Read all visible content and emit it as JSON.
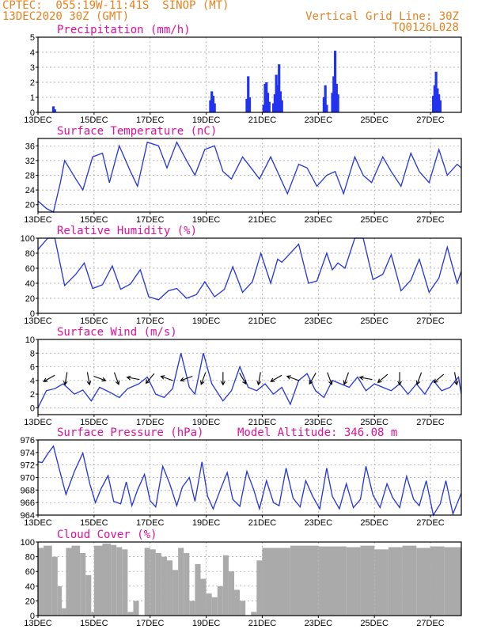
{
  "header": {
    "line1": "CPTEC:  055:19W-11:41S  SINOP (MT)",
    "line2": "13DEC2020 30Z (GMT)",
    "right1": "Vertical Grid Line: 30Z",
    "right2": "TQ0126L028"
  },
  "model_altitude_label": "Model Altitude: 346.08 m",
  "colors": {
    "title": "#e0109a",
    "header": "#e6821e",
    "series": "#2233dd",
    "cloud": "#aaaaaa"
  },
  "chart_data": [
    {
      "type": "bar",
      "title": "Precipitation (mm/h)",
      "x_tick_labels": [
        "13DEC",
        "15DEC",
        "17DEC",
        "19DEC",
        "21DEC",
        "23DEC",
        "25DEC",
        "27DEC"
      ],
      "x_days": [
        13,
        15,
        17,
        19,
        21,
        23,
        25,
        27
      ],
      "xlim": [
        13,
        28.1
      ],
      "ylim": [
        0,
        5
      ],
      "y_ticks": [
        0,
        1,
        2,
        3,
        4,
        5
      ],
      "grid": true,
      "x": [
        13.55,
        13.6,
        19.15,
        19.2,
        19.25,
        19.3,
        20.45,
        20.5,
        20.55,
        21.05,
        21.1,
        21.15,
        21.2,
        21.25,
        21.4,
        21.45,
        21.5,
        21.55,
        21.6,
        21.65,
        21.7,
        23.2,
        23.25,
        23.3,
        23.5,
        23.55,
        23.6,
        23.65,
        23.7,
        27.1,
        27.15,
        27.2,
        27.25,
        27.3,
        27.35
      ],
      "values": [
        0.4,
        0.2,
        0.8,
        1.4,
        1.1,
        0.6,
        0.9,
        2.4,
        1.0,
        0.5,
        1.9,
        2.0,
        1.3,
        0.7,
        0.6,
        1.2,
        2.5,
        1.8,
        3.2,
        1.4,
        0.8,
        1.0,
        1.8,
        0.5,
        1.3,
        2.4,
        4.1,
        1.9,
        1.2,
        1.1,
        1.8,
        2.7,
        1.6,
        1.2,
        0.8
      ]
    },
    {
      "type": "line",
      "title": "Surface Temperature (nC)",
      "x_tick_labels": [
        "13DEC",
        "15DEC",
        "17DEC",
        "19DEC",
        "21DEC",
        "23DEC",
        "25DEC",
        "27DEC"
      ],
      "x_days": [
        13,
        15,
        17,
        19,
        21,
        23,
        25,
        27
      ],
      "xlim": [
        13,
        28.1
      ],
      "ylim": [
        18,
        38
      ],
      "y_ticks": [
        20,
        24,
        28,
        32,
        36
      ],
      "grid": true,
      "x": [
        13.0,
        13.3,
        13.55,
        13.8,
        13.95,
        14.35,
        14.6,
        14.95,
        15.3,
        15.55,
        15.9,
        16.3,
        16.55,
        16.9,
        17.3,
        17.6,
        17.95,
        18.3,
        18.6,
        18.95,
        19.3,
        19.6,
        19.9,
        20.3,
        20.6,
        20.9,
        21.3,
        21.6,
        21.9,
        22.3,
        22.6,
        22.95,
        23.3,
        23.6,
        23.9,
        24.3,
        24.6,
        24.9,
        25.3,
        25.6,
        25.95,
        26.3,
        26.6,
        26.95,
        27.3,
        27.6,
        27.95,
        28.1
      ],
      "values": [
        21,
        19,
        18,
        26,
        32,
        27,
        24,
        33,
        34,
        26,
        36,
        29,
        25,
        37,
        36,
        30,
        37,
        32,
        28,
        35,
        36,
        29,
        27,
        33,
        30,
        27,
        33,
        28,
        23,
        31,
        30,
        25,
        28,
        29,
        23,
        33,
        28,
        26,
        33,
        29,
        25,
        34,
        29,
        26,
        35,
        28,
        31,
        30
      ]
    },
    {
      "type": "line",
      "title": "Relative Humidity (%)",
      "x_tick_labels": [
        "13DEC",
        "15DEC",
        "17DEC",
        "19DEC",
        "21DEC",
        "23DEC",
        "25DEC",
        "27DEC"
      ],
      "x_days": [
        13,
        15,
        17,
        19,
        21,
        23,
        25,
        27
      ],
      "xlim": [
        13,
        28.1
      ],
      "ylim": [
        0,
        100
      ],
      "y_ticks": [
        0,
        20,
        40,
        60,
        80,
        100
      ],
      "grid": true,
      "x": [
        13.0,
        13.35,
        13.6,
        13.95,
        14.35,
        14.65,
        14.95,
        15.3,
        15.65,
        15.95,
        16.3,
        16.65,
        16.95,
        17.3,
        17.65,
        17.95,
        18.3,
        18.65,
        18.95,
        19.3,
        19.65,
        19.95,
        20.3,
        20.65,
        20.95,
        21.3,
        21.55,
        21.7,
        21.95,
        22.3,
        22.65,
        22.95,
        23.3,
        23.5,
        23.7,
        23.95,
        24.3,
        24.6,
        24.95,
        25.3,
        25.6,
        25.95,
        26.3,
        26.6,
        26.95,
        27.3,
        27.6,
        27.95,
        28.1
      ],
      "values": [
        85,
        100,
        100,
        37,
        52,
        67,
        33,
        38,
        63,
        32,
        39,
        58,
        22,
        18,
        30,
        33,
        20,
        25,
        42,
        22,
        32,
        62,
        28,
        42,
        80,
        40,
        72,
        68,
        78,
        92,
        40,
        43,
        80,
        58,
        67,
        60,
        100,
        100,
        45,
        52,
        78,
        30,
        44,
        72,
        28,
        47,
        88,
        40,
        56
      ]
    },
    {
      "type": "line",
      "title": "Surface Wind (m/s)",
      "x_tick_labels": [
        "13DEC",
        "15DEC",
        "17DEC",
        "19DEC",
        "21DEC",
        "23DEC",
        "25DEC",
        "27DEC"
      ],
      "x_days": [
        13,
        15,
        17,
        19,
        21,
        23,
        25,
        27
      ],
      "xlim": [
        13,
        28.1
      ],
      "ylim": [
        -1,
        10
      ],
      "y_ticks": [
        0,
        2,
        4,
        6,
        8,
        10
      ],
      "grid": true,
      "x": [
        13.0,
        13.3,
        13.6,
        13.9,
        14.3,
        14.6,
        14.9,
        15.2,
        15.6,
        15.9,
        16.2,
        16.6,
        16.9,
        17.2,
        17.5,
        17.8,
        18.1,
        18.4,
        18.6,
        18.9,
        19.2,
        19.6,
        19.9,
        20.2,
        20.5,
        20.8,
        21.1,
        21.4,
        21.7,
        22.0,
        22.3,
        22.6,
        22.9,
        23.2,
        23.5,
        23.8,
        24.1,
        24.4,
        24.7,
        25.0,
        25.3,
        25.6,
        25.9,
        26.2,
        26.5,
        26.8,
        27.1,
        27.4,
        27.7,
        28.0,
        28.1
      ],
      "values": [
        0.0,
        2.5,
        2.8,
        3.5,
        2.0,
        2.6,
        1.0,
        3.0,
        2.2,
        1.5,
        2.8,
        3.5,
        4.5,
        2.0,
        1.5,
        2.8,
        8.0,
        3.0,
        2.0,
        8.0,
        3.5,
        1.0,
        2.5,
        6.0,
        3.0,
        2.5,
        3.5,
        2.0,
        3.0,
        0.5,
        4.0,
        5.0,
        2.5,
        1.5,
        4.0,
        3.5,
        3.0,
        4.5,
        2.5,
        3.5,
        3.0,
        2.5,
        3.5,
        2.0,
        3.5,
        2.0,
        4.0,
        2.5,
        3.0,
        4.5,
        2.0
      ],
      "wind_vectors_x": [
        13.4,
        14.0,
        14.8,
        15.2,
        15.8,
        16.4,
        17.0,
        17.6,
        18.3,
        18.9,
        19.6,
        20.3,
        20.9,
        21.5,
        22.1,
        22.8,
        23.4,
        24.0,
        24.7,
        25.3,
        25.9,
        26.6,
        27.3,
        27.9
      ],
      "wind_vectors_dir_deg": [
        150,
        100,
        80,
        20,
        70,
        190,
        130,
        200,
        160,
        110,
        90,
        60,
        100,
        150,
        200,
        120,
        70,
        110,
        190,
        140,
        90,
        110,
        140,
        80
      ]
    },
    {
      "type": "line",
      "title": "Surface Pressure (hPa)",
      "x_tick_labels": [
        "13DEC",
        "15DEC",
        "17DEC",
        "19DEC",
        "21DEC",
        "23DEC",
        "25DEC",
        "27DEC"
      ],
      "x_days": [
        13,
        15,
        17,
        19,
        21,
        23,
        25,
        27
      ],
      "xlim": [
        13,
        28.1
      ],
      "ylim": [
        964,
        976
      ],
      "y_ticks": [
        964,
        966,
        968,
        970,
        972,
        974,
        976
      ],
      "grid": true,
      "x": [
        13.0,
        13.15,
        13.35,
        13.55,
        13.75,
        14.0,
        14.3,
        14.6,
        14.85,
        15.05,
        15.25,
        15.5,
        15.7,
        15.95,
        16.15,
        16.35,
        16.55,
        16.8,
        17.0,
        17.2,
        17.45,
        17.7,
        17.95,
        18.15,
        18.4,
        18.6,
        18.85,
        19.05,
        19.25,
        19.5,
        19.75,
        19.95,
        20.2,
        20.45,
        20.7,
        20.9,
        21.15,
        21.4,
        21.6,
        21.85,
        22.1,
        22.35,
        22.55,
        22.8,
        23.05,
        23.3,
        23.5,
        23.75,
        24.0,
        24.25,
        24.5,
        24.7,
        24.95,
        25.2,
        25.45,
        25.65,
        25.9,
        26.15,
        26.4,
        26.6,
        26.85,
        27.1,
        27.35,
        27.55,
        27.8,
        28.1
      ],
      "values": [
        972.5,
        972.4,
        973.8,
        975.0,
        971.5,
        967.3,
        971.0,
        973.9,
        969.0,
        966.0,
        968.2,
        970.3,
        966.2,
        965.8,
        969.3,
        965.5,
        968.0,
        970.5,
        966.3,
        965.3,
        971.8,
        969.0,
        965.5,
        968.5,
        970.0,
        966.2,
        972.5,
        967.0,
        965.0,
        968.0,
        970.8,
        966.5,
        965.4,
        971.0,
        968.0,
        965.0,
        969.5,
        966.0,
        965.5,
        971.5,
        966.7,
        965.3,
        969.5,
        967.0,
        965.0,
        971.5,
        967.0,
        965.0,
        969.0,
        965.2,
        966.5,
        971.8,
        967.2,
        965.2,
        969.0,
        966.8,
        965.2,
        970.2,
        966.5,
        965.5,
        969.5,
        964.0,
        965.8,
        969.5,
        964.2,
        967.5
      ]
    },
    {
      "type": "area",
      "title": "Cloud Cover (%)",
      "x_tick_labels": [
        "13DEC",
        "15DEC",
        "17DEC",
        "19DEC",
        "21DEC",
        "23DEC",
        "25DEC",
        "27DEC"
      ],
      "x_days": [
        13,
        15,
        17,
        19,
        21,
        23,
        25,
        27
      ],
      "xlim": [
        13,
        28.1
      ],
      "ylim": [
        0,
        100
      ],
      "y_ticks": [
        0,
        20,
        40,
        60,
        80,
        100
      ],
      "grid": true,
      "x": [
        13.0,
        13.2,
        13.5,
        13.7,
        13.85,
        14.0,
        14.2,
        14.5,
        14.7,
        14.9,
        15.0,
        15.3,
        15.6,
        15.8,
        16.0,
        16.2,
        16.4,
        16.6,
        16.8,
        17.0,
        17.2,
        17.4,
        17.6,
        17.8,
        18.0,
        18.2,
        18.4,
        18.6,
        18.8,
        19.0,
        19.2,
        19.4,
        19.6,
        19.8,
        20.0,
        20.2,
        20.4,
        20.6,
        20.8,
        21.0,
        22.0,
        23.0,
        24.0,
        24.5,
        25.0,
        25.5,
        26.0,
        26.5,
        27.0,
        27.5,
        28.1
      ],
      "values": [
        92,
        95,
        80,
        40,
        10,
        92,
        95,
        85,
        55,
        5,
        95,
        98,
        96,
        93,
        90,
        5,
        20,
        0,
        92,
        90,
        85,
        80,
        75,
        62,
        92,
        85,
        20,
        70,
        50,
        30,
        25,
        40,
        82,
        60,
        35,
        20,
        0,
        5,
        75,
        92,
        95,
        94,
        93,
        95,
        90,
        93,
        95,
        92,
        94,
        93,
        95
      ]
    }
  ]
}
